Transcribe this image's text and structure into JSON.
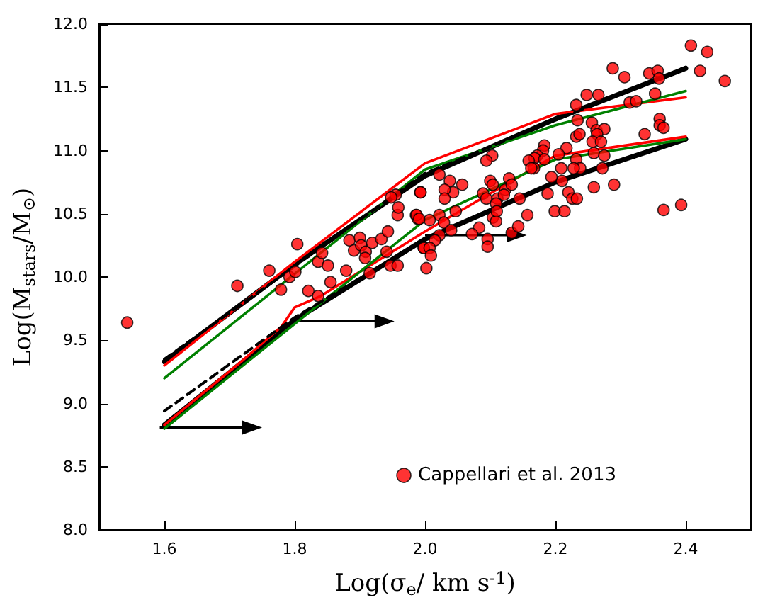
{
  "chart_data": {
    "type": "scatter",
    "xlabel": "Log(σ$_{e}$/ km s$^{-1}$)",
    "ylabel": "Log(M$_{stars}$/M$_{⊙}$)",
    "xlim": [
      1.5,
      2.5
    ],
    "xticks": [
      1.6,
      1.8,
      {
        "value": 2.0,
        "label": "2.0"
      },
      2.2,
      2.4
    ],
    "ylim": [
      8.0,
      12.0
    ],
    "yticks": [
      {
        "value": 8.0,
        "label": "8.0"
      },
      8.5,
      {
        "value": 9.0,
        "label": "9.0"
      },
      9.5,
      {
        "value": 10.0,
        "label": "10.0"
      },
      10.5,
      {
        "value": 11.0,
        "label": "11.0"
      },
      11.5,
      {
        "value": 12.0,
        "label": "12.0"
      }
    ],
    "legend": "bottom right",
    "marker": "circle",
    "series": [
      {
        "name": "Cappellari et al. 2013",
        "color": "#ff0000",
        "x": [
          1.543,
          1.712,
          1.761,
          1.779,
          1.792,
          1.801,
          1.804,
          1.821,
          1.836,
          1.842,
          1.851,
          1.855,
          1.836,
          1.879,
          1.884,
          1.891,
          1.9,
          1.902,
          1.909,
          1.908,
          1.919,
          1.915,
          1.933,
          1.943,
          1.941,
          1.947,
          1.958,
          1.958,
          1.959,
          1.955,
          1.948,
          1.986,
          1.993,
          1.989,
          1.998,
          2.408,
          2.433,
          2.46,
          2.422,
          2.288,
          2.306,
          2.344,
          2.357,
          2.359,
          2.353,
          2.248,
          2.266,
          2.232,
          2.314,
          2.324,
          2.234,
          2.256,
          2.263,
          2.275,
          2.264,
          2.232,
          2.237,
          2.257,
          2.27,
          2.337,
          2.36,
          2.36,
          2.366,
          2.217,
          2.232,
          2.259,
          2.275,
          2.272,
          2.238,
          2.228,
          2.209,
          2.205,
          2.183,
          2.181,
          2.172,
          2.168,
          2.159,
          2.183,
          2.167,
          2.163,
          2.21,
          2.194,
          2.188,
          2.22,
          2.226,
          2.233,
          2.259,
          2.29,
          2.199,
          2.214,
          2.366,
          2.393,
          2.157,
          2.145,
          2.129,
          2.123,
          2.133,
          2.103,
          2.094,
          2.1,
          2.104,
          2.089,
          2.094,
          2.111,
          2.121,
          2.109,
          2.104,
          2.109,
          2.11,
          2.083,
          2.072,
          2.096,
          2.096,
          2.133,
          2.143,
          2.057,
          2.043,
          2.038,
          2.022,
          1.993,
          2.03,
          2.03,
          2.022,
          2.007,
          1.987,
          1.991,
          2.029,
          2.047,
          2.04,
          2.022,
          2.015,
          1.998,
          2.007,
          2.009,
          2.002
        ],
        "values": [
          9.64,
          9.93,
          10.05,
          9.9,
          10.0,
          10.04,
          10.26,
          9.89,
          10.12,
          10.19,
          10.09,
          9.96,
          9.85,
          10.05,
          10.29,
          10.21,
          10.31,
          10.25,
          10.2,
          10.15,
          10.27,
          10.03,
          10.3,
          10.36,
          10.2,
          10.09,
          10.09,
          10.49,
          10.55,
          10.65,
          10.63,
          10.49,
          10.67,
          10.46,
          10.23,
          11.83,
          11.78,
          11.55,
          11.63,
          11.65,
          11.58,
          11.61,
          11.63,
          11.57,
          11.45,
          11.44,
          11.44,
          11.36,
          11.38,
          11.39,
          11.24,
          11.22,
          11.16,
          11.17,
          11.13,
          11.11,
          11.13,
          11.07,
          11.07,
          11.13,
          11.25,
          11.2,
          11.18,
          11.02,
          10.93,
          10.98,
          10.96,
          10.86,
          10.86,
          10.86,
          10.86,
          10.97,
          11.04,
          11.0,
          10.96,
          10.94,
          10.92,
          10.93,
          10.86,
          10.86,
          10.76,
          10.79,
          10.66,
          10.67,
          10.62,
          10.62,
          10.71,
          10.73,
          10.52,
          10.52,
          10.53,
          10.57,
          10.49,
          10.62,
          10.78,
          10.69,
          10.73,
          10.96,
          10.92,
          10.76,
          10.73,
          10.66,
          10.62,
          10.62,
          10.65,
          10.58,
          10.47,
          10.44,
          10.52,
          10.39,
          10.34,
          10.3,
          10.24,
          10.35,
          10.4,
          10.73,
          10.67,
          10.76,
          10.81,
          10.67,
          10.69,
          10.62,
          10.49,
          10.45,
          10.49,
          10.46,
          10.43,
          10.52,
          10.37,
          10.33,
          10.29,
          10.23,
          10.23,
          10.17,
          10.07
        ]
      },
      {
        "type": "line",
        "color": "#000000",
        "line_style": "solid",
        "marker": "none",
        "x": [
          1.6,
          1.8,
          2.0,
          2.2,
          2.4
        ],
        "values": [
          9.33,
          10.1,
          10.8,
          11.25,
          11.65
        ]
      },
      {
        "type": "line",
        "color": "#000000",
        "line_style": "dashed",
        "marker": "none",
        "x": [
          1.6,
          2.0,
          2.4
        ],
        "values": [
          9.35,
          10.82,
          11.66
        ]
      },
      {
        "type": "line",
        "color": "#ff0000",
        "line_style": "solid",
        "marker": "none",
        "x": [
          1.6,
          1.8,
          2.0,
          2.2,
          2.4
        ],
        "values": [
          9.3,
          10.12,
          10.9,
          11.29,
          11.42
        ]
      },
      {
        "type": "line",
        "color": "#008000",
        "line_style": "solid",
        "marker": "none",
        "x": [
          1.6,
          2.0,
          2.2,
          2.4
        ],
        "values": [
          9.2,
          10.85,
          11.2,
          11.47
        ]
      },
      {
        "type": "line",
        "color": "#000000",
        "line_style": "solid",
        "marker": "none",
        "x": [
          1.6,
          1.8,
          2.0,
          2.2,
          2.4
        ],
        "values": [
          8.83,
          9.66,
          10.3,
          10.75,
          11.09
        ]
      },
      {
        "type": "line",
        "color": "#000000",
        "line_style": "dashed",
        "marker": "none",
        "x": [
          1.6,
          1.8,
          2.0
        ],
        "values": [
          8.94,
          9.68,
          10.3
        ]
      },
      {
        "type": "line",
        "color": "#ff0000",
        "line_style": "solid",
        "marker": "none",
        "x": [
          1.6,
          1.72,
          1.78,
          1.8,
          1.84,
          2.0,
          2.2,
          2.4
        ],
        "values": [
          8.83,
          9.34,
          9.61,
          9.76,
          9.85,
          10.36,
          10.96,
          11.11
        ]
      },
      {
        "type": "line",
        "color": "#008000",
        "line_style": "solid",
        "marker": "none",
        "x": [
          1.6,
          1.8,
          2.0,
          2.2,
          2.4
        ],
        "values": [
          8.8,
          9.63,
          10.45,
          10.93,
          11.09
        ]
      }
    ]
  }
}
